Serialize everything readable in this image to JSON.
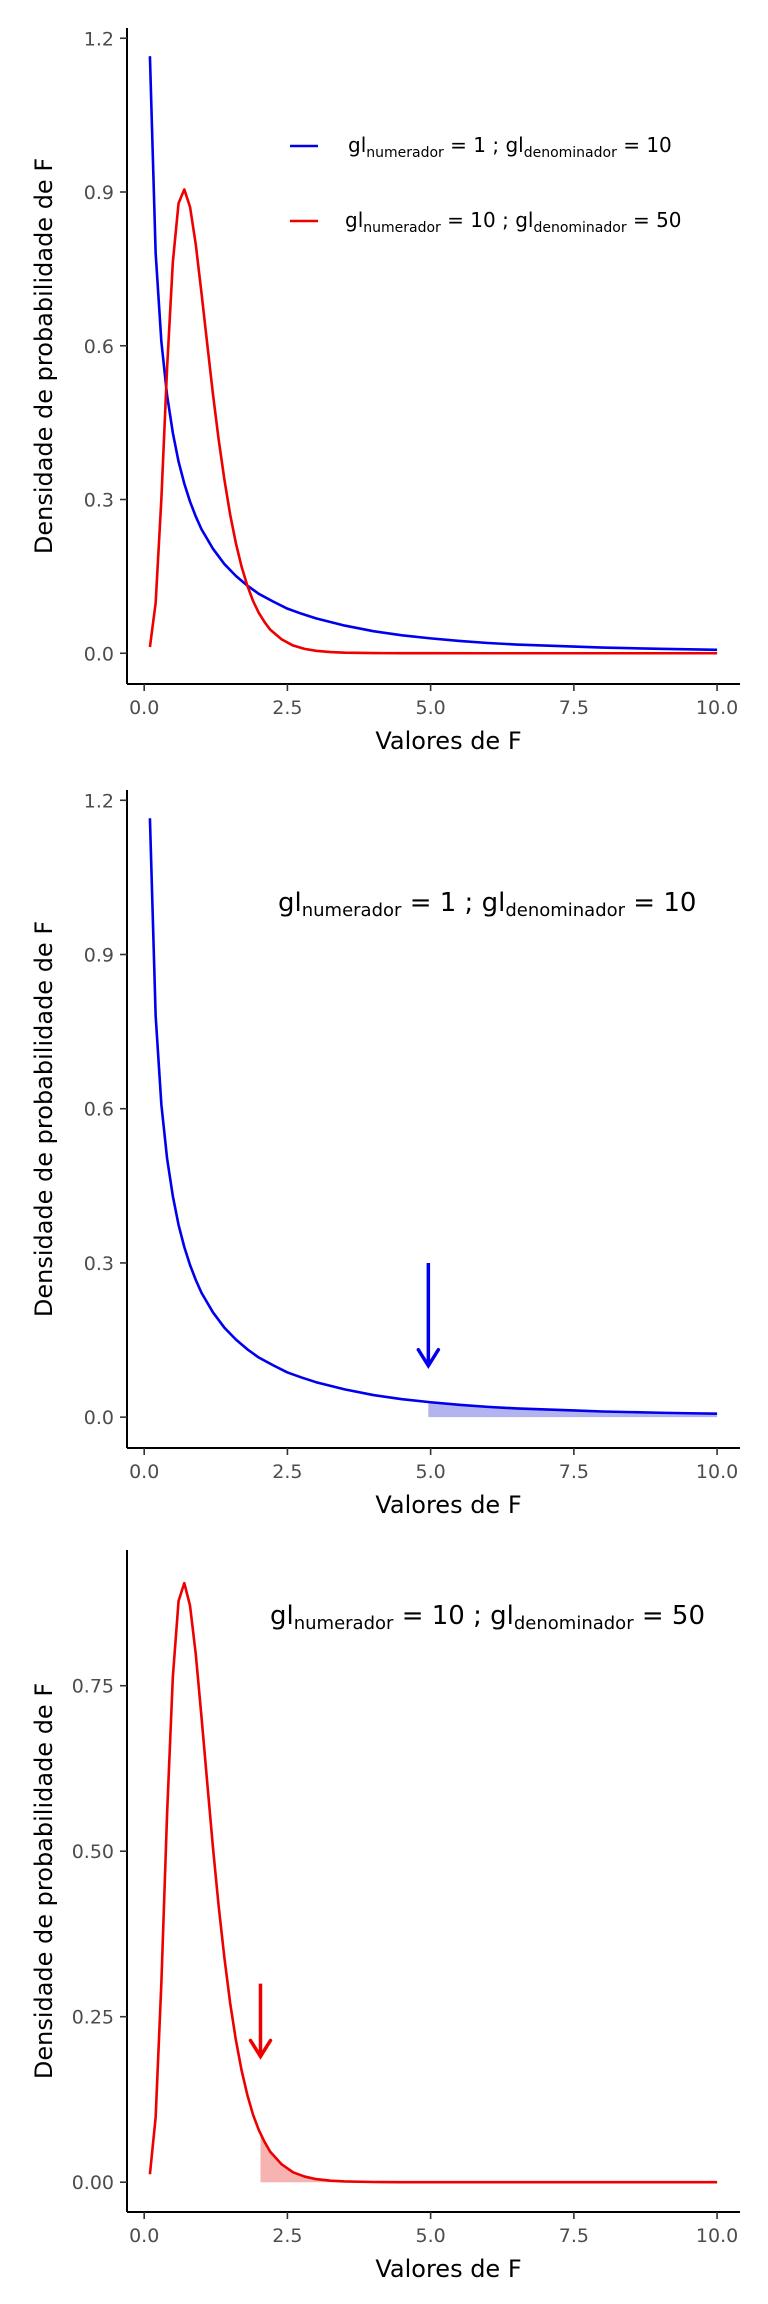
{
  "colors": {
    "blue": "#0000ee",
    "red": "#ee0000",
    "blue_fill": "#b3b3ee",
    "red_fill": "#f7b2b2",
    "axis": "#000000"
  },
  "chart_data": [
    {
      "type": "line",
      "xlabel": "Valores de F",
      "ylabel": "Densidade de probabilidade de F",
      "xlim": [
        -0.3,
        10.4
      ],
      "ylim": [
        -0.06,
        1.22
      ],
      "xticks": [
        0.0,
        2.5,
        5.0,
        7.5,
        10.0
      ],
      "xtick_labels": [
        "0.0",
        "2.5",
        "5.0",
        "7.5",
        "10.0"
      ],
      "yticks": [
        0.0,
        0.3,
        0.6,
        0.9,
        1.2
      ],
      "ytick_labels": [
        "0.0",
        "0.3",
        "0.6",
        "0.9",
        "1.2"
      ],
      "grid": false,
      "legend": "top-right",
      "series": [
        {
          "gl": "gl",
          "sub1": "numerador",
          "mid": " = 1 ; gl",
          "sub2": "denominador",
          "end": " = 10",
          "color": "blue",
          "x": [
            0.1,
            0.2,
            0.3,
            0.4,
            0.5,
            0.6,
            0.7,
            0.8,
            0.9,
            1.0,
            1.2,
            1.4,
            1.6,
            1.8,
            2.0,
            2.25,
            2.5,
            2.75,
            3.0,
            3.5,
            4.0,
            4.5,
            5.0,
            5.5,
            6.0,
            6.5,
            7.0,
            7.5,
            8.0,
            8.5,
            9.0,
            9.5,
            10.0
          ],
          "y": [
            1.165,
            0.781,
            0.608,
            0.503,
            0.43,
            0.374,
            0.331,
            0.296,
            0.267,
            0.242,
            0.204,
            0.174,
            0.151,
            0.132,
            0.116,
            0.101,
            0.087,
            0.077,
            0.068,
            0.054,
            0.043,
            0.035,
            0.029,
            0.024,
            0.02,
            0.017,
            0.015,
            0.013,
            0.011,
            0.0098,
            0.0086,
            0.0076,
            0.0067
          ]
        },
        {
          "gl": "gl",
          "sub1": "numerador",
          "mid": " = 10 ; gl",
          "sub2": "denominador",
          "end": " = 50",
          "color": "red",
          "x": [
            0.1,
            0.2,
            0.3,
            0.4,
            0.5,
            0.6,
            0.7,
            0.8,
            0.9,
            1.0,
            1.1,
            1.2,
            1.3,
            1.4,
            1.5,
            1.6,
            1.7,
            1.8,
            1.9,
            2.0,
            2.1,
            2.2,
            2.4,
            2.6,
            2.8,
            3.0,
            3.25,
            3.5,
            4.0,
            4.5,
            5.0,
            6.0,
            7.0,
            8.0,
            9.0,
            10.0
          ],
          "y": [
            0.012,
            0.098,
            0.301,
            0.557,
            0.763,
            0.878,
            0.905,
            0.871,
            0.798,
            0.703,
            0.604,
            0.506,
            0.417,
            0.339,
            0.271,
            0.215,
            0.169,
            0.132,
            0.102,
            0.079,
            0.061,
            0.046,
            0.027,
            0.015,
            0.0085,
            0.0047,
            0.0023,
            0.0011,
            0.0003,
            0.0001,
            3e-05,
            0.0,
            0.0,
            0.0,
            0.0,
            0.0
          ]
        }
      ]
    },
    {
      "type": "area",
      "xlabel": "Valores de F",
      "ylabel": "Densidade de probabilidade de F",
      "xlim": [
        -0.3,
        10.4
      ],
      "ylim": [
        -0.06,
        1.22
      ],
      "xticks": [
        0.0,
        2.5,
        5.0,
        7.5,
        10.0
      ],
      "xtick_labels": [
        "0.0",
        "2.5",
        "5.0",
        "7.5",
        "10.0"
      ],
      "yticks": [
        0.0,
        0.3,
        0.6,
        0.9,
        1.2
      ],
      "ytick_labels": [
        "0.0",
        "0.3",
        "0.6",
        "0.9",
        "1.2"
      ],
      "grid": false,
      "annotation": {
        "gl": "gl",
        "sub1": "numerador",
        "mid": " = 1 ; gl",
        "sub2": "denominador",
        "end": " = 10"
      },
      "shade_from": 4.96,
      "arrow": {
        "x": 4.96,
        "y_from": 0.3,
        "y_to": 0.1
      },
      "series": [
        {
          "color": "blue",
          "x": [
            0.1,
            0.2,
            0.3,
            0.4,
            0.5,
            0.6,
            0.7,
            0.8,
            0.9,
            1.0,
            1.2,
            1.4,
            1.6,
            1.8,
            2.0,
            2.25,
            2.5,
            2.75,
            3.0,
            3.5,
            4.0,
            4.5,
            5.0,
            5.5,
            6.0,
            6.5,
            7.0,
            7.5,
            8.0,
            8.5,
            9.0,
            9.5,
            10.0
          ],
          "y": [
            1.165,
            0.781,
            0.608,
            0.503,
            0.43,
            0.374,
            0.331,
            0.296,
            0.267,
            0.242,
            0.204,
            0.174,
            0.151,
            0.132,
            0.116,
            0.101,
            0.087,
            0.077,
            0.068,
            0.054,
            0.043,
            0.035,
            0.029,
            0.024,
            0.02,
            0.017,
            0.015,
            0.013,
            0.011,
            0.0098,
            0.0086,
            0.0076,
            0.0067
          ]
        }
      ]
    },
    {
      "type": "area",
      "xlabel": "Valores de F",
      "ylabel": "Densidade de probabilidade de F",
      "xlim": [
        -0.3,
        10.4
      ],
      "ylim": [
        -0.045,
        0.955
      ],
      "xticks": [
        0.0,
        2.5,
        5.0,
        7.5,
        10.0
      ],
      "xtick_labels": [
        "0.0",
        "2.5",
        "5.0",
        "7.5",
        "10.0"
      ],
      "yticks": [
        0.0,
        0.25,
        0.5,
        0.75
      ],
      "ytick_labels": [
        "0.00",
        "0.25",
        "0.50",
        "0.75"
      ],
      "grid": false,
      "annotation": {
        "gl": "gl",
        "sub1": "numerador",
        "mid": " = 10 ; gl",
        "sub2": "denominador",
        "end": " = 50"
      },
      "shade_from": 2.03,
      "arrow": {
        "x": 2.03,
        "y_from": 0.3,
        "y_to": 0.19
      },
      "series": [
        {
          "color": "red",
          "x": [
            0.1,
            0.2,
            0.3,
            0.4,
            0.5,
            0.6,
            0.7,
            0.8,
            0.9,
            1.0,
            1.1,
            1.2,
            1.3,
            1.4,
            1.5,
            1.6,
            1.7,
            1.8,
            1.9,
            2.0,
            2.1,
            2.2,
            2.4,
            2.6,
            2.8,
            3.0,
            3.25,
            3.5,
            4.0,
            4.5,
            5.0,
            6.0,
            7.0,
            8.0,
            9.0,
            10.0
          ],
          "y": [
            0.012,
            0.098,
            0.301,
            0.557,
            0.763,
            0.878,
            0.905,
            0.871,
            0.798,
            0.703,
            0.604,
            0.506,
            0.417,
            0.339,
            0.271,
            0.215,
            0.169,
            0.132,
            0.102,
            0.079,
            0.061,
            0.046,
            0.027,
            0.015,
            0.0085,
            0.0047,
            0.0023,
            0.0011,
            0.0003,
            0.0001,
            3e-05,
            0.0,
            0.0,
            0.0,
            0.0,
            0.0
          ]
        }
      ]
    }
  ]
}
